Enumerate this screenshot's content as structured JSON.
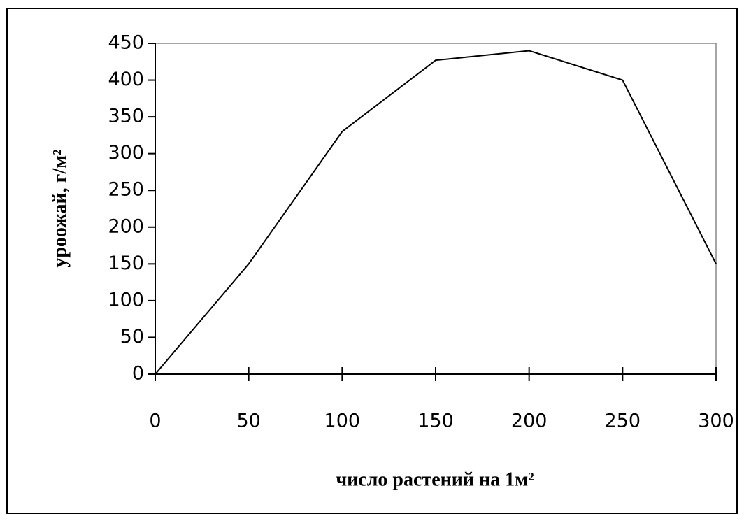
{
  "chart_data": {
    "type": "line",
    "xlabel": "число растений на 1м²",
    "ylabel": "уроожай, г/м²",
    "x": [
      0,
      50,
      100,
      150,
      200,
      250,
      300
    ],
    "values": [
      0,
      150,
      330,
      427,
      440,
      400,
      150
    ],
    "color": "#000000",
    "xlim": [
      0,
      300
    ],
    "xticks": [
      0,
      50,
      100,
      150,
      200,
      250,
      300
    ],
    "ylim": [
      0,
      450
    ],
    "yticks": [
      0,
      50,
      100,
      150,
      200,
      250,
      300,
      350,
      400,
      450
    ],
    "grid": false
  }
}
